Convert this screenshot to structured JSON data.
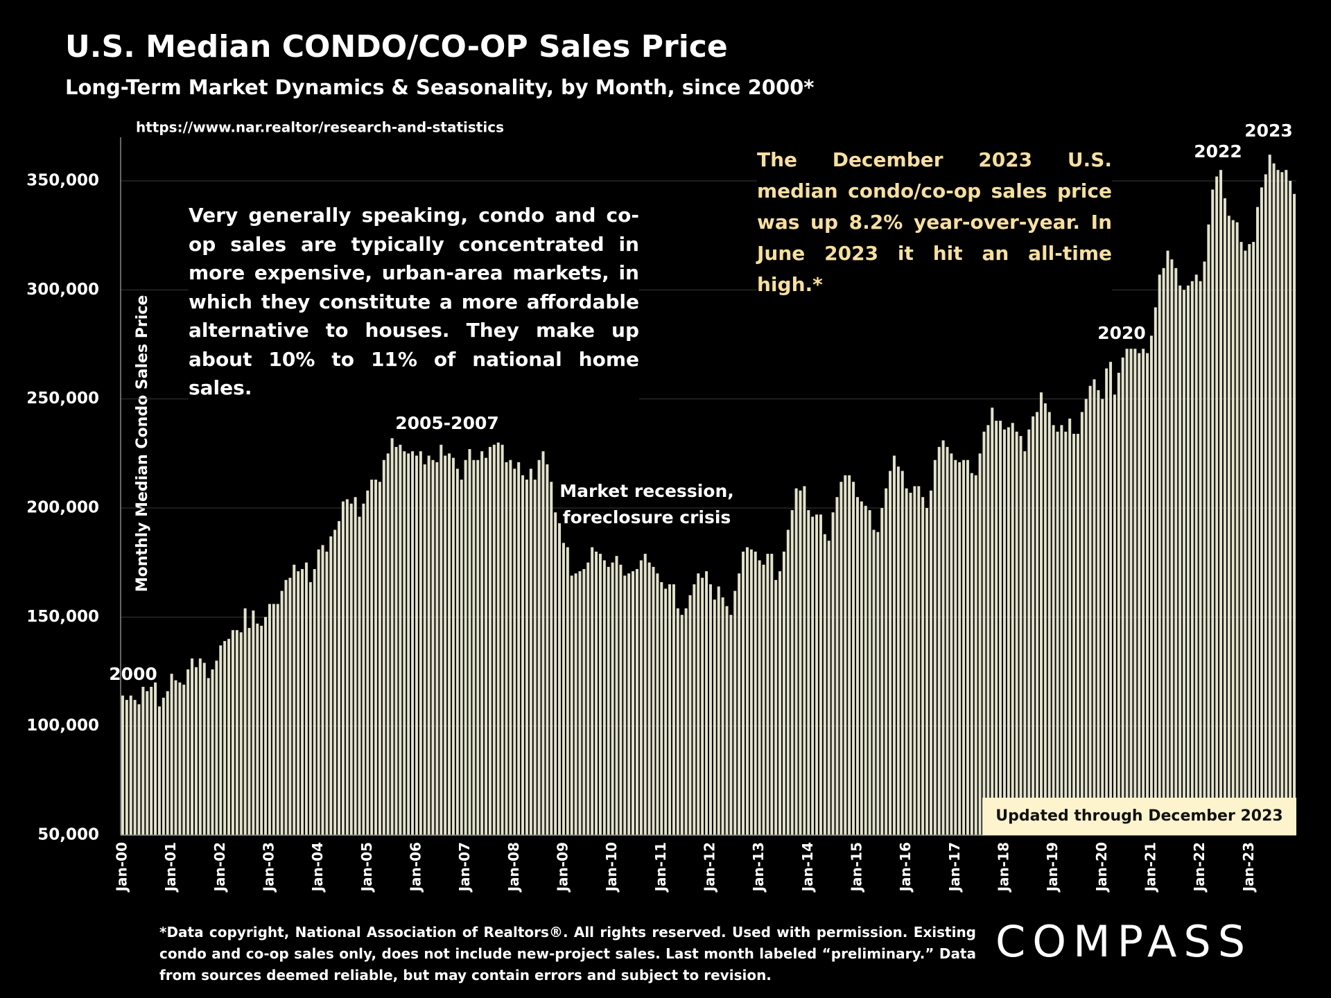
{
  "chart_data": {
    "type": "bar",
    "title": "U.S. Median CONDO/CO-OP Sales Price",
    "subtitle": "Long-Term Market Dynamics & Seasonality, by Month, since 2000*",
    "source": "https://www.nar.realtor/research-and-statistics",
    "y_label": "Monthly Median Condo Sales Price",
    "note": "Very generally speaking, condo and co-op sales are typically concentrated in more expensive, urban-area markets, in which they constitute a more affordable alternative to houses. They make up about 10% to 11% of national home sales.",
    "callout": "The December 2023 U.S. median condo/co-op sales price was up 8.2% year-over-year. In June 2023 it hit an all-time high.*",
    "labels": [
      "2000",
      "2005-2007",
      "Market recession,",
      "foreclosure crisis",
      "2020",
      "2022",
      "2023"
    ],
    "updated": "Updated through December 2023",
    "footnote": "*Data copyright, National Association of Realtors®. All rights reserved. Used with permission. Existing condo and co-op sales only, does  not include new-project sales. Last month labeled “preliminary.” Data from sources deemed reliable, but may contain errors and subject to revision.",
    "logo": "COMPASS",
    "color": "#e2e2cc",
    "grid": true,
    "ylim": [
      50000,
      370000
    ],
    "yticks": [
      {
        "value": 50000,
        "label": "50,000"
      },
      {
        "value": 100000,
        "label": "100,000"
      },
      {
        "value": 150000,
        "label": "150,000"
      },
      {
        "value": 200000,
        "label": "200,000"
      },
      {
        "value": 250000,
        "label": "250,000"
      },
      {
        "value": 300000,
        "label": "300,000"
      },
      {
        "value": 350000,
        "label": "350,000"
      }
    ],
    "categories": [
      "Jan-00",
      null,
      null,
      null,
      null,
      null,
      null,
      null,
      null,
      null,
      null,
      null,
      "Jan-01",
      null,
      null,
      null,
      null,
      null,
      null,
      null,
      null,
      null,
      null,
      null,
      "Jan-02",
      null,
      null,
      null,
      null,
      null,
      null,
      null,
      null,
      null,
      null,
      null,
      "Jan-03",
      null,
      null,
      null,
      null,
      null,
      null,
      null,
      null,
      null,
      null,
      null,
      "Jan-04",
      null,
      null,
      null,
      null,
      null,
      null,
      null,
      null,
      null,
      null,
      null,
      "Jan-05",
      null,
      null,
      null,
      null,
      null,
      null,
      null,
      null,
      null,
      null,
      null,
      "Jan-06",
      null,
      null,
      null,
      null,
      null,
      null,
      null,
      null,
      null,
      null,
      null,
      "Jan-07",
      null,
      null,
      null,
      null,
      null,
      null,
      null,
      null,
      null,
      null,
      null,
      "Jan-08",
      null,
      null,
      null,
      null,
      null,
      null,
      null,
      null,
      null,
      null,
      null,
      "Jan-09",
      null,
      null,
      null,
      null,
      null,
      null,
      null,
      null,
      null,
      null,
      null,
      "Jan-10",
      null,
      null,
      null,
      null,
      null,
      null,
      null,
      null,
      null,
      null,
      null,
      "Jan-11",
      null,
      null,
      null,
      null,
      null,
      null,
      null,
      null,
      null,
      null,
      null,
      "Jan-12",
      null,
      null,
      null,
      null,
      null,
      null,
      null,
      null,
      null,
      null,
      null,
      "Jan-13",
      null,
      null,
      null,
      null,
      null,
      null,
      null,
      null,
      null,
      null,
      null,
      "Jan-14",
      null,
      null,
      null,
      null,
      null,
      null,
      null,
      null,
      null,
      null,
      null,
      "Jan-15",
      null,
      null,
      null,
      null,
      null,
      null,
      null,
      null,
      null,
      null,
      null,
      "Jan-16",
      null,
      null,
      null,
      null,
      null,
      null,
      null,
      null,
      null,
      null,
      null,
      "Jan-17",
      null,
      null,
      null,
      null,
      null,
      null,
      null,
      null,
      null,
      null,
      null,
      "Jan-18",
      null,
      null,
      null,
      null,
      null,
      null,
      null,
      null,
      null,
      null,
      null,
      "Jan-19",
      null,
      null,
      null,
      null,
      null,
      null,
      null,
      null,
      null,
      null,
      null,
      "Jan-20",
      null,
      null,
      null,
      null,
      null,
      null,
      null,
      null,
      null,
      null,
      null,
      "Jan-21",
      null,
      null,
      null,
      null,
      null,
      null,
      null,
      null,
      null,
      null,
      null,
      "Jan-22",
      null,
      null,
      null,
      null,
      null,
      null,
      null,
      null,
      null,
      null,
      null,
      "Jan-23",
      null,
      null,
      null,
      null,
      null,
      null,
      null,
      null,
      null,
      null,
      null
    ],
    "values": [
      114000,
      112000,
      114000,
      112000,
      110000,
      118000,
      116000,
      118000,
      120000,
      109000,
      113000,
      116000,
      124000,
      121000,
      120000,
      119000,
      126000,
      131000,
      127000,
      131000,
      129000,
      122000,
      126000,
      130000,
      137000,
      139000,
      140000,
      144000,
      144000,
      143000,
      154000,
      145000,
      153000,
      147000,
      146000,
      150000,
      156000,
      156000,
      156000,
      162000,
      167000,
      168000,
      174000,
      171000,
      172000,
      175000,
      166000,
      172000,
      181000,
      183000,
      180000,
      187000,
      190000,
      194000,
      203000,
      204000,
      202000,
      205000,
      196000,
      202000,
      208000,
      213000,
      213000,
      212000,
      222000,
      225000,
      232000,
      228000,
      229000,
      226000,
      225000,
      226000,
      224000,
      226000,
      220000,
      224000,
      222000,
      221000,
      229000,
      224000,
      225000,
      223000,
      218000,
      213000,
      222000,
      227000,
      222000,
      222000,
      226000,
      223000,
      228000,
      229000,
      230000,
      229000,
      221000,
      222000,
      218000,
      221000,
      215000,
      213000,
      218000,
      213000,
      222000,
      226000,
      220000,
      212000,
      198000,
      193000,
      184000,
      182000,
      169000,
      170000,
      171000,
      172000,
      175000,
      182000,
      180000,
      179000,
      176000,
      173000,
      175000,
      178000,
      174000,
      169000,
      170000,
      171000,
      172000,
      176000,
      179000,
      175000,
      173000,
      170000,
      166000,
      163000,
      165000,
      165000,
      154000,
      151000,
      154000,
      160000,
      165000,
      170000,
      168000,
      171000,
      165000,
      158000,
      164000,
      159000,
      155000,
      151000,
      162000,
      170000,
      180000,
      182000,
      181000,
      180000,
      176000,
      174000,
      179000,
      179000,
      167000,
      171000,
      180000,
      190000,
      199000,
      209000,
      208000,
      210000,
      199000,
      196000,
      197000,
      197000,
      188000,
      185000,
      198000,
      205000,
      212000,
      215000,
      215000,
      212000,
      205000,
      203000,
      201000,
      199000,
      190000,
      189000,
      200000,
      209000,
      217000,
      224000,
      219000,
      217000,
      209000,
      207000,
      210000,
      210000,
      205000,
      200000,
      208000,
      222000,
      228000,
      231000,
      228000,
      225000,
      222000,
      221000,
      222000,
      222000,
      216000,
      215000,
      225000,
      235000,
      238000,
      246000,
      240000,
      240000,
      236000,
      237000,
      239000,
      235000,
      233000,
      226000,
      236000,
      242000,
      244000,
      253000,
      248000,
      244000,
      238000,
      235000,
      238000,
      235000,
      241000,
      234000,
      234000,
      244000,
      250000,
      256000,
      259000,
      254000,
      250000,
      264000,
      267000,
      252000,
      262000,
      269000,
      273000,
      273000,
      273000,
      271000,
      273000,
      271000,
      279000,
      292000,
      307000,
      310000,
      318000,
      314000,
      310000,
      302000,
      300000,
      302000,
      304000,
      307000,
      304000,
      313000,
      330000,
      346000,
      352000,
      355000,
      342000,
      334000,
      332000,
      331000,
      322000,
      318000,
      321000,
      322000,
      338000,
      347000,
      353000,
      362000,
      358000,
      355000,
      354000,
      355000,
      350000,
      344000
    ]
  }
}
